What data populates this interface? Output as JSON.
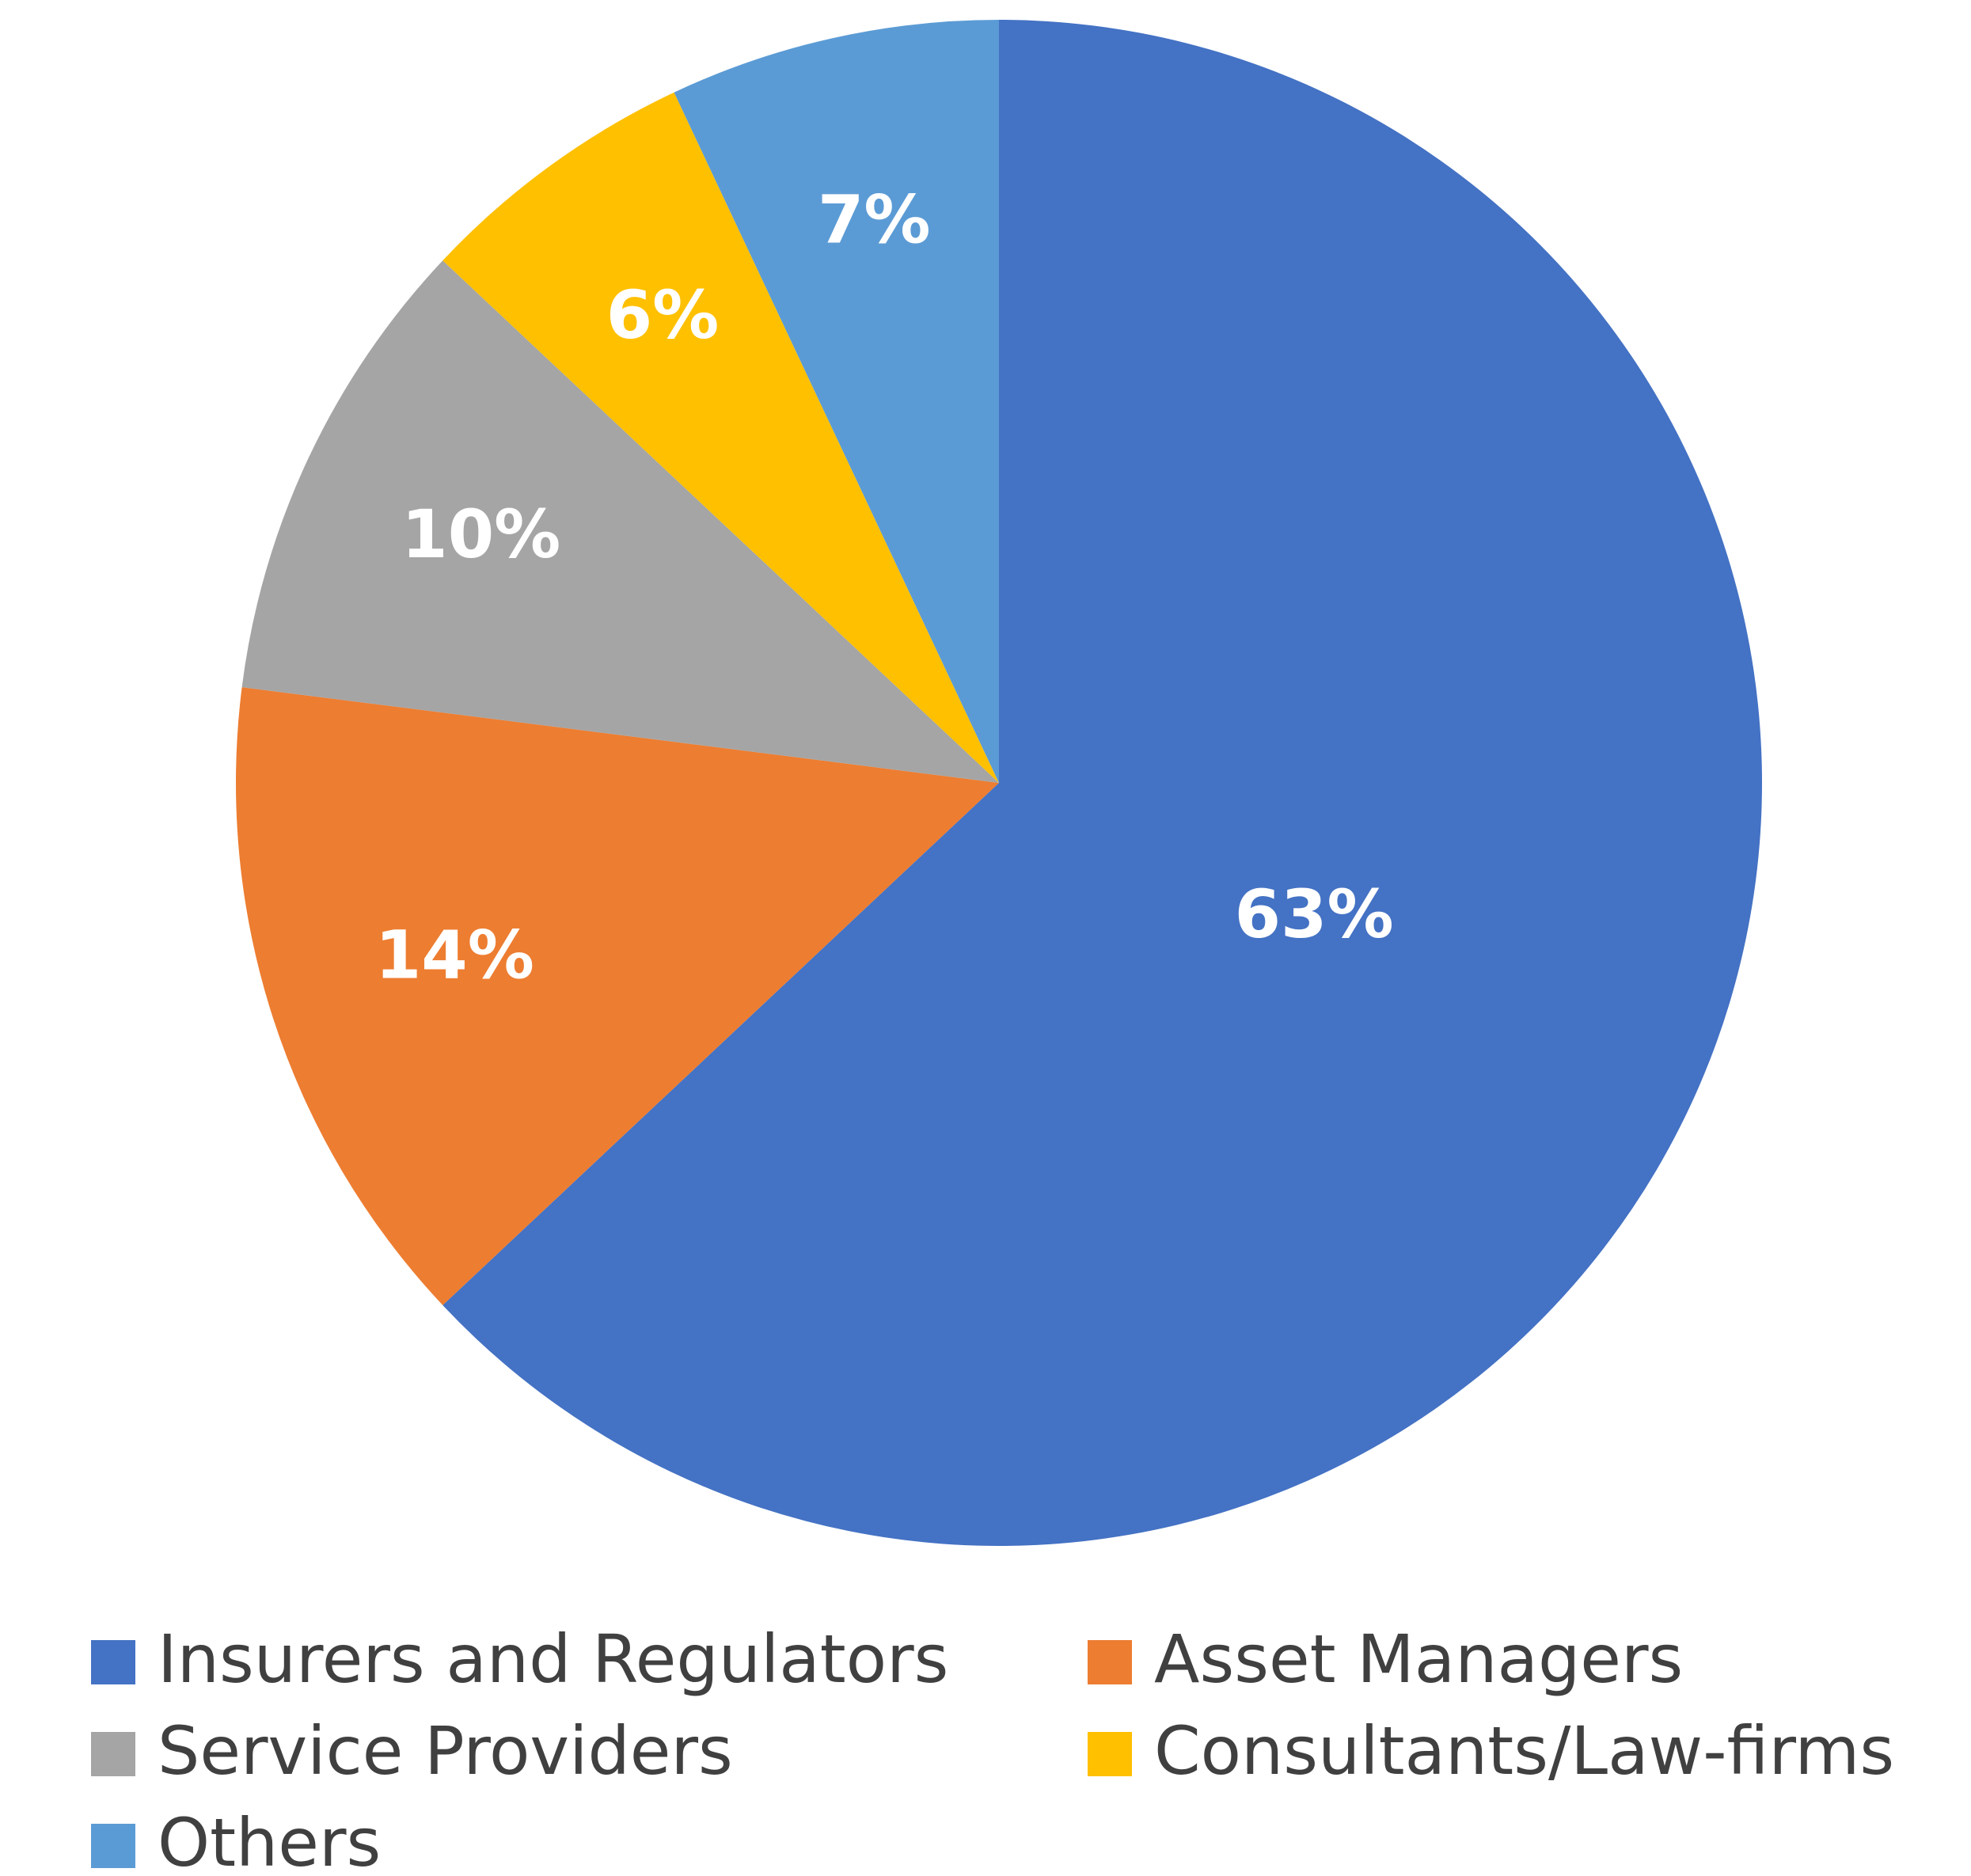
{
  "chart_data": {
    "type": "pie",
    "categories": [
      "Insurers and Regulators",
      "Asset Managers",
      "Service Providers",
      "Consultants/Law-firms",
      "Others"
    ],
    "values": [
      63,
      14,
      10,
      6,
      7
    ],
    "value_labels": [
      "63%",
      "14%",
      "10%",
      "6%",
      "7%"
    ],
    "colors": [
      "#4472c4",
      "#ed7d31",
      "#a5a5a5",
      "#ffc000",
      "#5b9bd5"
    ],
    "legend": "bottom"
  }
}
